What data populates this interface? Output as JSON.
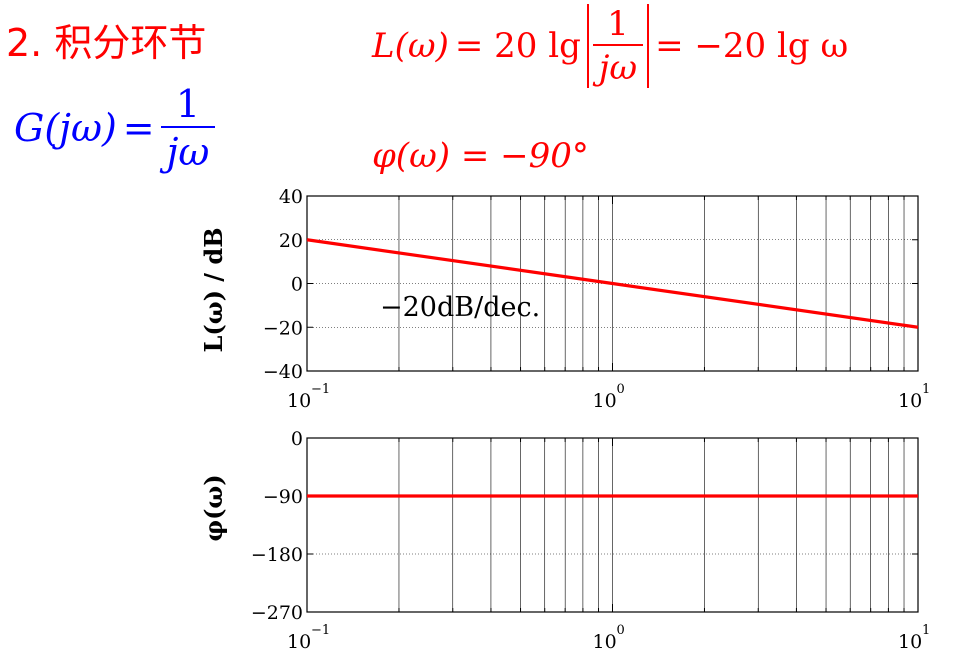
{
  "slide": {
    "title": "2. 积分环节",
    "transfer_function": {
      "lhs": "G(jω)",
      "equals": "=",
      "numerator": "1",
      "denominator": "jω"
    },
    "magnitude_formula": {
      "lhs": "L(ω)",
      "equals": "= 20 lg",
      "numerator": "1",
      "denominator": "jω",
      "rhs": "= −20 lg ω"
    },
    "phase_formula": "φ(ω) = −90°"
  },
  "colors": {
    "response_line": "#ff0000",
    "title": "#ff0000",
    "transfer_function": "#0000ff",
    "grid": "#000000"
  },
  "chart_data": [
    {
      "type": "line",
      "ylabel": "L(ω)  /  dB",
      "x_scale": "log",
      "xlim": [
        0.1,
        10
      ],
      "ylim": [
        -40,
        40
      ],
      "grid": true,
      "yticks": [
        -40,
        -20,
        0,
        20,
        40
      ],
      "ytick_labels": [
        "−40",
        "−20",
        "0",
        "20",
        "40"
      ],
      "xtick_labels": [
        {
          "base": "10",
          "exp": "−1"
        },
        {
          "base": "10",
          "exp": "0"
        },
        {
          "base": "10",
          "exp": "1"
        }
      ],
      "series": [
        {
          "x": [
            0.1,
            1,
            10
          ],
          "y": [
            20,
            0,
            -20
          ]
        }
      ],
      "annotation": "−20dB/dec."
    },
    {
      "type": "line",
      "ylabel": "φ(ω)",
      "x_scale": "log",
      "xlim": [
        0.1,
        10
      ],
      "ylim": [
        -270,
        0
      ],
      "grid": true,
      "yticks": [
        -270,
        -180,
        -90,
        0
      ],
      "ytick_labels": [
        "−270",
        "−180",
        "−90",
        "0"
      ],
      "xtick_labels": [
        {
          "base": "10",
          "exp": "−1"
        },
        {
          "base": "10",
          "exp": "0"
        },
        {
          "base": "10",
          "exp": "1"
        }
      ],
      "series": [
        {
          "x": [
            0.1,
            1,
            10
          ],
          "y": [
            -90,
            -90,
            -90
          ]
        }
      ]
    }
  ]
}
